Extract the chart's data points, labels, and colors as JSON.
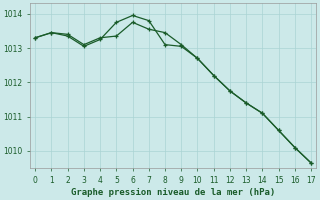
{
  "x": [
    0,
    1,
    2,
    3,
    4,
    5,
    6,
    7,
    8,
    9,
    10,
    11,
    12,
    13,
    14,
    15,
    16,
    17
  ],
  "line1": [
    1013.3,
    1013.45,
    1013.4,
    1013.1,
    1013.3,
    1013.35,
    1013.75,
    1013.55,
    1013.45,
    1013.1,
    1012.7,
    1012.2,
    1011.75,
    1011.4,
    1011.1,
    1010.6,
    1010.1,
    1009.65
  ],
  "line2": [
    1013.3,
    1013.45,
    1013.35,
    1013.05,
    1013.25,
    1013.75,
    1013.95,
    1013.8,
    1013.1,
    1013.05,
    1012.7,
    1012.2,
    1011.75,
    1011.4,
    1011.1,
    1010.6,
    1010.1,
    1009.65
  ],
  "background_color": "#cce9e9",
  "grid_color_major": "#aad4d4",
  "grid_color_minor": "#bbdede",
  "line_color": "#1a5c2a",
  "xlabel": "Graphe pression niveau de la mer (hPa)",
  "ylim": [
    1009.5,
    1014.3
  ],
  "xlim": [
    -0.3,
    17.3
  ],
  "yticks": [
    1010,
    1011,
    1012,
    1013,
    1014
  ],
  "xticks": [
    0,
    1,
    2,
    3,
    4,
    5,
    6,
    7,
    8,
    9,
    10,
    11,
    12,
    13,
    14,
    15,
    16,
    17
  ],
  "xlabel_fontsize": 6.5,
  "tick_fontsize": 5.5
}
